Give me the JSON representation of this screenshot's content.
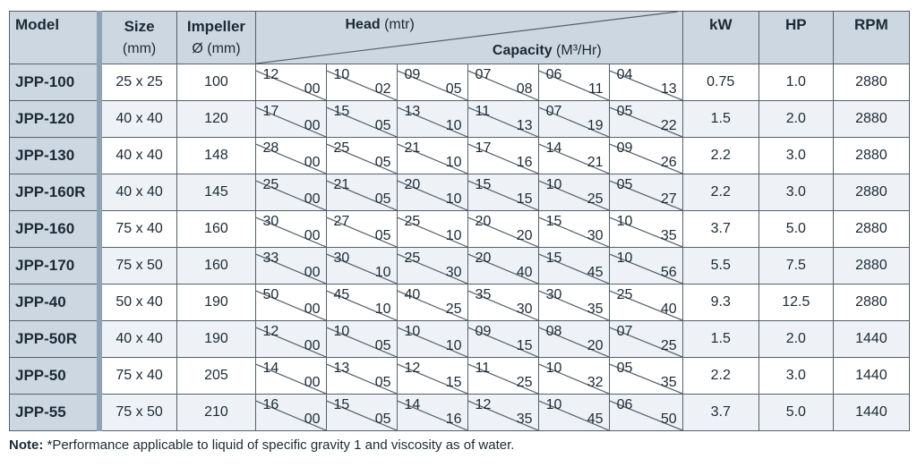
{
  "table": {
    "headers": {
      "model": "Model",
      "size": "Size",
      "size_unit": "(mm)",
      "impeller": "Impeller",
      "impeller_unit": "Ø (mm)",
      "head": "Head",
      "head_unit": "(mtr)",
      "capacity": "Capacity",
      "capacity_unit": "(M³/Hr)",
      "kw": "kW",
      "hp": "HP",
      "rpm": "RPM"
    },
    "rows": [
      {
        "model": "JPP-100",
        "size": "25 x 25",
        "impeller": "100",
        "points": [
          {
            "h": "12",
            "c": "00"
          },
          {
            "h": "10",
            "c": "02"
          },
          {
            "h": "09",
            "c": "05"
          },
          {
            "h": "07",
            "c": "08"
          },
          {
            "h": "06",
            "c": "11"
          },
          {
            "h": "04",
            "c": "13"
          }
        ],
        "kw": "0.75",
        "hp": "1.0",
        "rpm": "2880"
      },
      {
        "model": "JPP-120",
        "size": "40 x 40",
        "impeller": "120",
        "points": [
          {
            "h": "17",
            "c": "00"
          },
          {
            "h": "15",
            "c": "05"
          },
          {
            "h": "13",
            "c": "10"
          },
          {
            "h": "11",
            "c": "13"
          },
          {
            "h": "07",
            "c": "19"
          },
          {
            "h": "05",
            "c": "22"
          }
        ],
        "kw": "1.5",
        "hp": "2.0",
        "rpm": "2880"
      },
      {
        "model": "JPP-130",
        "size": "40 x 40",
        "impeller": "148",
        "points": [
          {
            "h": "28",
            "c": "00"
          },
          {
            "h": "25",
            "c": "05"
          },
          {
            "h": "21",
            "c": "10"
          },
          {
            "h": "17",
            "c": "16"
          },
          {
            "h": "14",
            "c": "21"
          },
          {
            "h": "09",
            "c": "26"
          }
        ],
        "kw": "2.2",
        "hp": "3.0",
        "rpm": "2880"
      },
      {
        "model": "JPP-160R",
        "size": "40 x 40",
        "impeller": "145",
        "points": [
          {
            "h": "25",
            "c": "00"
          },
          {
            "h": "21",
            "c": "05"
          },
          {
            "h": "20",
            "c": "10"
          },
          {
            "h": "15",
            "c": "15"
          },
          {
            "h": "10",
            "c": "25"
          },
          {
            "h": "05",
            "c": "27"
          }
        ],
        "kw": "2.2",
        "hp": "3.0",
        "rpm": "2880"
      },
      {
        "model": "JPP-160",
        "size": "75 x 40",
        "impeller": "160",
        "points": [
          {
            "h": "30",
            "c": "00"
          },
          {
            "h": "27",
            "c": "05"
          },
          {
            "h": "25",
            "c": "10"
          },
          {
            "h": "20",
            "c": "20"
          },
          {
            "h": "15",
            "c": "30"
          },
          {
            "h": "10",
            "c": "35"
          }
        ],
        "kw": "3.7",
        "hp": "5.0",
        "rpm": "2880"
      },
      {
        "model": "JPP-170",
        "size": "75 x 50",
        "impeller": "160",
        "points": [
          {
            "h": "33",
            "c": "00"
          },
          {
            "h": "30",
            "c": "10"
          },
          {
            "h": "25",
            "c": "30"
          },
          {
            "h": "20",
            "c": "40"
          },
          {
            "h": "15",
            "c": "45"
          },
          {
            "h": "10",
            "c": "56"
          }
        ],
        "kw": "5.5",
        "hp": "7.5",
        "rpm": "2880"
      },
      {
        "model": "JPP-40",
        "size": "50 x 40",
        "impeller": "190",
        "points": [
          {
            "h": "50",
            "c": "00"
          },
          {
            "h": "45",
            "c": "10"
          },
          {
            "h": "40",
            "c": "25"
          },
          {
            "h": "35",
            "c": "30"
          },
          {
            "h": "30",
            "c": "35"
          },
          {
            "h": "25",
            "c": "40"
          }
        ],
        "kw": "9.3",
        "hp": "12.5",
        "rpm": "2880"
      },
      {
        "model": "JPP-50R",
        "size": "40 x 40",
        "impeller": "190",
        "points": [
          {
            "h": "12",
            "c": "00"
          },
          {
            "h": "10",
            "c": "05"
          },
          {
            "h": "10",
            "c": "10"
          },
          {
            "h": "09",
            "c": "15"
          },
          {
            "h": "08",
            "c": "20"
          },
          {
            "h": "07",
            "c": "25"
          }
        ],
        "kw": "1.5",
        "hp": "2.0",
        "rpm": "1440"
      },
      {
        "model": "JPP-50",
        "size": "75 x 40",
        "impeller": "205",
        "points": [
          {
            "h": "14",
            "c": "00"
          },
          {
            "h": "13",
            "c": "05"
          },
          {
            "h": "12",
            "c": "15"
          },
          {
            "h": "11",
            "c": "25"
          },
          {
            "h": "10",
            "c": "32"
          },
          {
            "h": "05",
            "c": "35"
          }
        ],
        "kw": "2.2",
        "hp": "3.0",
        "rpm": "1440"
      },
      {
        "model": "JPP-55",
        "size": "75 x 50",
        "impeller": "210",
        "points": [
          {
            "h": "16",
            "c": "00"
          },
          {
            "h": "15",
            "c": "05"
          },
          {
            "h": "14",
            "c": "16"
          },
          {
            "h": "12",
            "c": "35"
          },
          {
            "h": "10",
            "c": "45"
          },
          {
            "h": "06",
            "c": "50"
          }
        ],
        "kw": "3.7",
        "hp": "5.0",
        "rpm": "1440"
      }
    ]
  },
  "note": {
    "label": "Note:",
    "text": "*Performance applicable to liquid of specific gravity 1 and viscosity as of water."
  },
  "colors": {
    "header_bg": "#ccd7e1",
    "border": "#55606a",
    "accent_separator": "#8fa3b5",
    "row_alt_bg": "#eef2f6"
  }
}
